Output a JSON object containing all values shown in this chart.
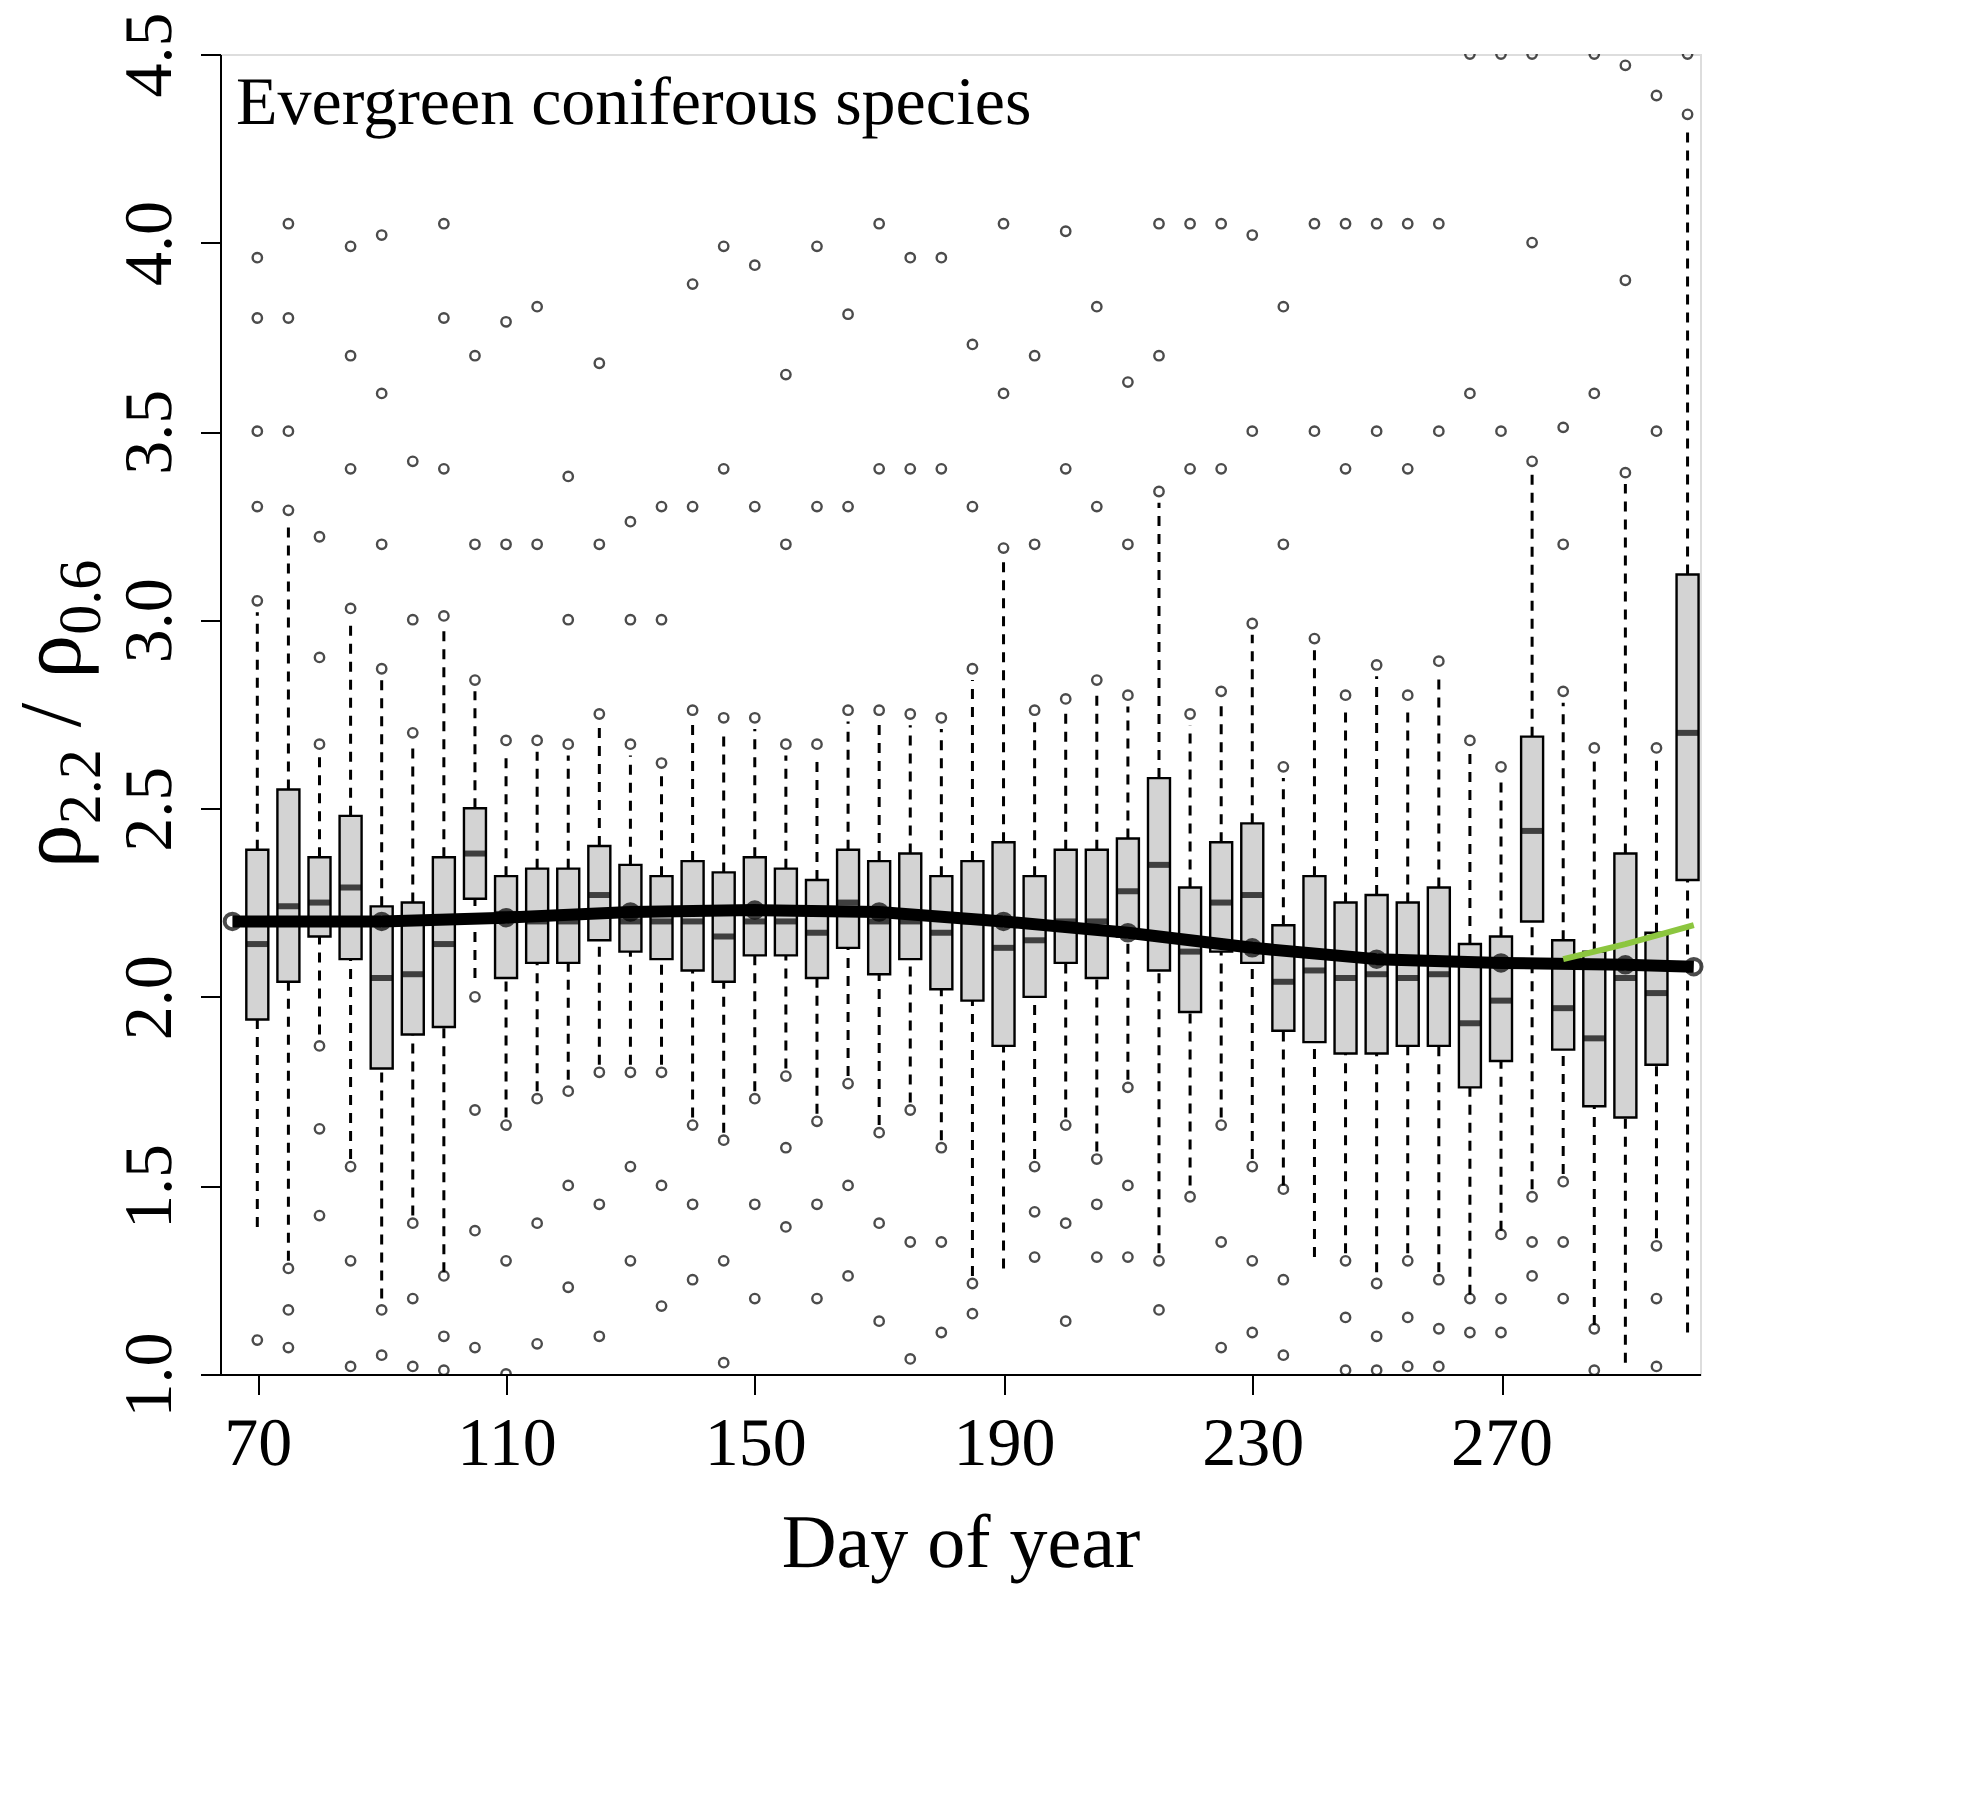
{
  "chart_data": {
    "type": "box",
    "xlabel": "Day of year",
    "ylabel": "ρ$_{2.2}$ / ρ$_{0.6}$",
    "annotations": [
      "Evergreen coniferous species"
    ],
    "x": [
      70,
      75,
      80,
      85,
      90,
      95,
      100,
      105,
      110,
      115,
      120,
      125,
      130,
      135,
      140,
      145,
      150,
      155,
      160,
      165,
      170,
      175,
      180,
      185,
      190,
      195,
      200,
      205,
      210,
      215,
      220,
      225,
      230,
      235,
      240,
      245,
      250,
      255,
      260,
      265,
      270,
      275,
      280,
      285,
      290,
      295,
      300
    ],
    "xlim": [
      64,
      302
    ],
    "xticks": [
      70,
      110,
      150,
      190,
      230,
      270
    ],
    "ylim": [
      1.0,
      4.5
    ],
    "yticks": [
      {
        "value": 1,
        "label": "1.0"
      },
      1.5,
      {
        "value": 2,
        "label": "2.0"
      },
      2.5,
      {
        "value": 3,
        "label": "3.0"
      },
      3.5,
      {
        "value": 4,
        "label": "4.0"
      },
      4.5
    ],
    "grid": false,
    "series": [
      {
        "type": "box",
        "color": "#d3d3d3",
        "boxes": [
          {
            "low": 1.39,
            "q1": 1.94,
            "median": 2.14,
            "q3": 2.39,
            "high": 3.02,
            "outliers": [
              3.05,
              3.3,
              3.5,
              3.8,
              3.96,
              1.09
            ]
          },
          {
            "low": 1.3,
            "q1": 2.04,
            "median": 2.24,
            "q3": 2.55,
            "high": 3.26,
            "outliers": [
              3.29,
              3.5,
              3.8,
              4.05,
              1.28,
              1.17,
              1.07
            ]
          },
          {
            "low": 1.9,
            "q1": 2.16,
            "median": 2.25,
            "q3": 2.37,
            "high": 2.64,
            "outliers": [
              2.67,
              2.9,
              3.22,
              1.87,
              1.65,
              1.42
            ]
          },
          {
            "low": 1.57,
            "q1": 2.1,
            "median": 2.29,
            "q3": 2.48,
            "high": 3.0,
            "outliers": [
              3.03,
              3.4,
              3.7,
              3.99,
              1.55,
              1.3,
              1.02
            ]
          },
          {
            "low": 1.2,
            "q1": 1.81,
            "median": 2.05,
            "q3": 2.24,
            "high": 2.84,
            "outliers": [
              2.87,
              3.2,
              3.6,
              4.02,
              1.17,
              1.05
            ]
          },
          {
            "low": 1.42,
            "q1": 1.9,
            "median": 2.06,
            "q3": 2.25,
            "high": 2.67,
            "outliers": [
              2.7,
              3.0,
              3.42,
              1.4,
              1.2,
              1.02
            ]
          },
          {
            "low": 1.27,
            "q1": 1.92,
            "median": 2.14,
            "q3": 2.37,
            "high": 2.98,
            "outliers": [
              3.01,
              3.4,
              3.8,
              4.05,
              1.26,
              1.1,
              1.01
            ]
          },
          {
            "low": 2.05,
            "q1": 2.26,
            "median": 2.38,
            "q3": 2.5,
            "high": 2.81,
            "outliers": [
              2.84,
              3.2,
              3.7,
              2.0,
              1.7,
              1.38,
              1.07
            ]
          },
          {
            "low": 1.68,
            "q1": 2.05,
            "median": 2.22,
            "q3": 2.32,
            "high": 2.65,
            "outliers": [
              2.68,
              3.2,
              3.79,
              1.66,
              1.3,
              1.0
            ]
          },
          {
            "low": 1.75,
            "q1": 2.09,
            "median": 2.2,
            "q3": 2.34,
            "high": 2.65,
            "outliers": [
              2.68,
              3.2,
              3.83,
              1.73,
              1.4,
              1.08
            ]
          },
          {
            "low": 1.78,
            "q1": 2.09,
            "median": 2.2,
            "q3": 2.34,
            "high": 2.64,
            "outliers": [
              2.67,
              3.0,
              3.38,
              1.75,
              1.5,
              1.23
            ]
          },
          {
            "low": 1.82,
            "q1": 2.15,
            "median": 2.27,
            "q3": 2.4,
            "high": 2.72,
            "outliers": [
              2.75,
              3.2,
              3.68,
              1.8,
              1.45,
              1.1
            ]
          },
          {
            "low": 1.82,
            "q1": 2.12,
            "median": 2.2,
            "q3": 2.35,
            "high": 2.64,
            "outliers": [
              2.67,
              3.0,
              3.26,
              1.8,
              1.55,
              1.3
            ]
          },
          {
            "low": 1.82,
            "q1": 2.1,
            "median": 2.2,
            "q3": 2.32,
            "high": 2.59,
            "outliers": [
              2.62,
              3.0,
              3.3,
              1.8,
              1.5,
              1.18
            ]
          },
          {
            "low": 1.68,
            "q1": 2.07,
            "median": 2.2,
            "q3": 2.36,
            "high": 2.73,
            "outliers": [
              2.76,
              3.3,
              3.89,
              1.66,
              1.45,
              1.25
            ]
          },
          {
            "low": 1.64,
            "q1": 2.04,
            "median": 2.16,
            "q3": 2.33,
            "high": 2.71,
            "outliers": [
              2.74,
              3.4,
              3.99,
              1.62,
              1.3,
              1.03
            ]
          },
          {
            "low": 1.75,
            "q1": 2.11,
            "median": 2.2,
            "q3": 2.37,
            "high": 2.71,
            "outliers": [
              2.74,
              3.3,
              3.94,
              1.73,
              1.45,
              1.2
            ]
          },
          {
            "low": 1.81,
            "q1": 2.11,
            "median": 2.2,
            "q3": 2.34,
            "high": 2.64,
            "outliers": [
              2.67,
              3.2,
              3.65,
              1.79,
              1.6,
              1.39
            ]
          },
          {
            "low": 1.69,
            "q1": 2.05,
            "median": 2.17,
            "q3": 2.31,
            "high": 2.64,
            "outliers": [
              2.67,
              3.3,
              3.99,
              1.67,
              1.45,
              1.2
            ]
          },
          {
            "low": 1.79,
            "q1": 2.13,
            "median": 2.25,
            "q3": 2.39,
            "high": 2.73,
            "outliers": [
              2.76,
              3.3,
              3.81,
              1.77,
              1.5,
              1.26
            ]
          },
          {
            "low": 1.66,
            "q1": 2.06,
            "median": 2.2,
            "q3": 2.36,
            "high": 2.73,
            "outliers": [
              2.76,
              3.4,
              4.05,
              1.64,
              1.4,
              1.14
            ]
          },
          {
            "low": 1.72,
            "q1": 2.1,
            "median": 2.2,
            "q3": 2.38,
            "high": 2.72,
            "outliers": [
              2.75,
              3.4,
              3.96,
              1.7,
              1.35,
              1.04
            ]
          },
          {
            "low": 1.62,
            "q1": 2.02,
            "median": 2.17,
            "q3": 2.32,
            "high": 2.71,
            "outliers": [
              2.74,
              3.4,
              3.96,
              1.6,
              1.35,
              1.11
            ]
          },
          {
            "low": 1.26,
            "q1": 1.99,
            "median": 2.2,
            "q3": 2.36,
            "high": 2.84,
            "outliers": [
              2.87,
              3.3,
              3.73,
              1.24,
              1.16
            ]
          },
          {
            "low": 1.28,
            "q1": 1.87,
            "median": 2.13,
            "q3": 2.41,
            "high": 3.16,
            "outliers": [
              3.19,
              3.6,
              4.05
            ]
          },
          {
            "low": 1.57,
            "q1": 2.0,
            "median": 2.15,
            "q3": 2.32,
            "high": 2.73,
            "outliers": [
              2.76,
              3.2,
              3.7,
              1.55,
              1.43,
              1.31
            ]
          },
          {
            "low": 1.68,
            "q1": 2.09,
            "median": 2.2,
            "q3": 2.39,
            "high": 2.76,
            "outliers": [
              2.79,
              3.4,
              4.03,
              1.66,
              1.4,
              1.14
            ]
          },
          {
            "low": 1.59,
            "q1": 2.05,
            "median": 2.2,
            "q3": 2.39,
            "high": 2.81,
            "outliers": [
              2.84,
              3.3,
              3.83,
              1.57,
              1.45,
              1.31
            ]
          },
          {
            "low": 1.78,
            "q1": 2.16,
            "median": 2.28,
            "q3": 2.42,
            "high": 2.77,
            "outliers": [
              2.8,
              3.2,
              3.63,
              1.76,
              1.5,
              1.31
            ]
          },
          {
            "low": 1.32,
            "q1": 2.07,
            "median": 2.35,
            "q3": 2.58,
            "high": 3.31,
            "outliers": [
              3.34,
              3.7,
              4.05,
              1.3,
              1.17
            ]
          },
          {
            "low": 1.5,
            "q1": 1.96,
            "median": 2.12,
            "q3": 2.29,
            "high": 2.72,
            "outliers": [
              2.75,
              3.4,
              4.05,
              1.47
            ]
          },
          {
            "low": 1.68,
            "q1": 2.12,
            "median": 2.25,
            "q3": 2.41,
            "high": 2.78,
            "outliers": [
              2.81,
              3.4,
              4.05,
              1.66,
              1.35,
              1.07
            ]
          },
          {
            "low": 1.57,
            "q1": 2.09,
            "median": 2.27,
            "q3": 2.46,
            "high": 2.96,
            "outliers": [
              2.99,
              3.5,
              4.02,
              1.55,
              1.3,
              1.11
            ]
          },
          {
            "low": 1.5,
            "q1": 1.91,
            "median": 2.04,
            "q3": 2.19,
            "high": 2.58,
            "outliers": [
              2.61,
              3.2,
              3.83,
              1.49,
              1.25,
              1.05
            ]
          },
          {
            "low": 1.31,
            "q1": 1.88,
            "median": 2.07,
            "q3": 2.32,
            "high": 2.92,
            "outliers": [
              2.95,
              3.5,
              4.05
            ]
          },
          {
            "low": 1.32,
            "q1": 1.85,
            "median": 2.05,
            "q3": 2.25,
            "high": 2.77,
            "outliers": [
              2.8,
              3.4,
              4.05,
              1.3,
              1.15,
              1.01
            ]
          },
          {
            "low": 1.27,
            "q1": 1.85,
            "median": 2.06,
            "q3": 2.27,
            "high": 2.85,
            "outliers": [
              2.88,
              3.5,
              4.05,
              1.24,
              1.1,
              1.01
            ]
          },
          {
            "low": 1.32,
            "q1": 1.87,
            "median": 2.05,
            "q3": 2.25,
            "high": 2.77,
            "outliers": [
              2.8,
              3.4,
              4.05,
              1.3,
              1.15,
              1.02
            ]
          },
          {
            "low": 1.27,
            "q1": 1.87,
            "median": 2.06,
            "q3": 2.29,
            "high": 2.86,
            "outliers": [
              2.89,
              3.5,
              4.05,
              1.25,
              1.12,
              1.02
            ]
          },
          {
            "low": 1.21,
            "q1": 1.76,
            "median": 1.93,
            "q3": 2.14,
            "high": 2.65,
            "outliers": [
              2.68,
              3.6,
              4.5,
              1.2,
              1.11
            ]
          },
          {
            "low": 1.38,
            "q1": 1.83,
            "median": 1.99,
            "q3": 2.16,
            "high": 2.58,
            "outliers": [
              2.61,
              3.5,
              4.5,
              1.37,
              1.2,
              1.11
            ]
          },
          {
            "low": 1.49,
            "q1": 2.2,
            "median": 2.44,
            "q3": 2.69,
            "high": 3.39,
            "outliers": [
              3.42,
              4.0,
              4.5,
              1.47,
              1.35,
              1.26
            ]
          },
          {
            "low": 1.53,
            "q1": 1.86,
            "median": 1.97,
            "q3": 2.15,
            "high": 2.78,
            "outliers": [
              2.81,
              3.2,
              3.51,
              1.51,
              1.35,
              1.2
            ]
          },
          {
            "low": 1.13,
            "q1": 1.71,
            "median": 1.89,
            "q3": 2.12,
            "high": 2.63,
            "outliers": [
              2.66,
              3.6,
              4.5,
              1.12,
              1.01
            ]
          },
          {
            "low": 1.03,
            "q1": 1.68,
            "median": 2.05,
            "q3": 2.38,
            "high": 3.36,
            "outliers": [
              3.39,
              3.9,
              4.47
            ]
          },
          {
            "low": 1.36,
            "q1": 1.82,
            "median": 2.01,
            "q3": 2.17,
            "high": 2.63,
            "outliers": [
              2.66,
              3.5,
              4.39,
              1.34,
              1.2,
              1.02
            ]
          },
          {
            "low": 1.11,
            "q1": 2.31,
            "median": 2.7,
            "q3": 3.12,
            "high": 4.31,
            "outliers": [
              4.34,
              4.5
            ]
          }
        ]
      },
      {
        "type": "line",
        "color": "#000000",
        "marker": "circle",
        "x": [
          66,
          90,
          110,
          130,
          150,
          170,
          190,
          210,
          230,
          250,
          270,
          290,
          301
        ],
        "values": [
          2.2,
          2.2,
          2.21,
          2.225,
          2.23,
          2.225,
          2.2,
          2.17,
          2.13,
          2.1,
          2.09,
          2.085,
          2.08
        ]
      },
      {
        "type": "line",
        "color": "#8cc63f",
        "marker": "none",
        "x": [
          280,
          290,
          301
        ],
        "values": [
          2.1,
          2.14,
          2.19
        ]
      }
    ]
  }
}
